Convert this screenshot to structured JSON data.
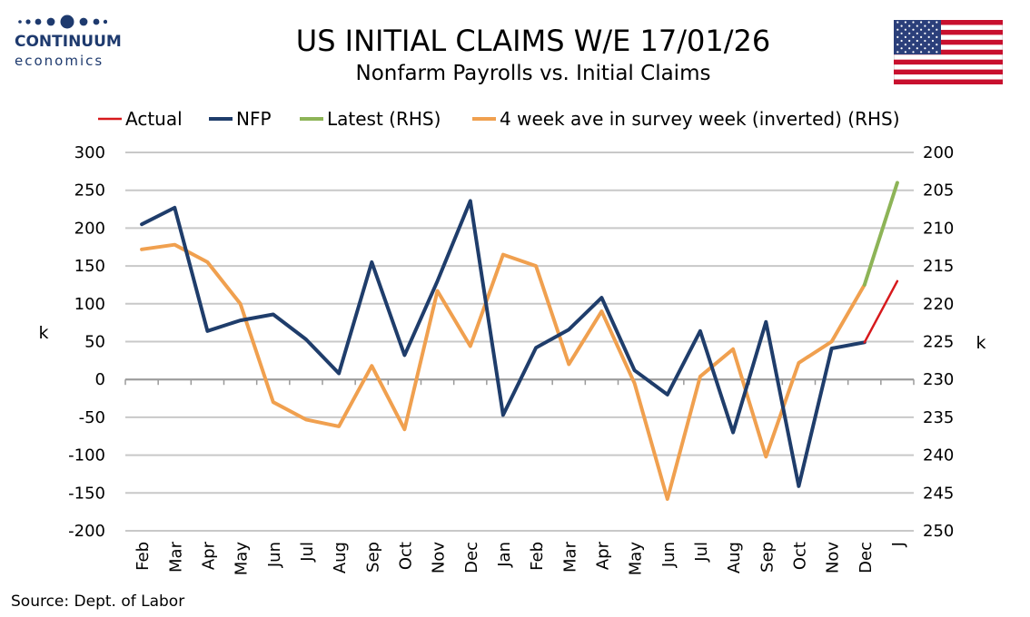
{
  "brand": {
    "name": "CONTINUUM",
    "sub": "economics"
  },
  "header": {
    "title": "US INITIAL CLAIMS W/E 17/01/26",
    "subtitle": "Nonfarm Payrolls vs. Initial Claims"
  },
  "flag": {
    "country": "United States",
    "icon": "us-flag-icon"
  },
  "source": "Source: Dept. of Labor",
  "colors": {
    "actual": "#d7191c",
    "nfp": "#1f3d6b",
    "latest": "#8db457",
    "claims": "#f0a04f",
    "grid": "#c8c8c8"
  },
  "chart_data": {
    "type": "line",
    "title": "Nonfarm Payrolls vs. Initial Claims",
    "categories": [
      "Feb",
      "Mar",
      "Apr",
      "May",
      "Jun",
      "Jul",
      "Aug",
      "Sep",
      "Oct",
      "Nov",
      "Dec",
      "Jan",
      "Feb",
      "Mar",
      "Apr",
      "May",
      "Jun",
      "Jul",
      "Aug",
      "Sep",
      "Oct",
      "Nov",
      "Dec",
      "J"
    ],
    "ylabel_left": "k",
    "ylabel_right": "k",
    "ylim_left": [
      -200,
      300
    ],
    "ylim_right": [
      250,
      200
    ],
    "yticks_left": [
      300,
      250,
      200,
      150,
      100,
      50,
      0,
      -50,
      -100,
      -150,
      -200
    ],
    "yticks_right": [
      200,
      205,
      210,
      215,
      220,
      225,
      230,
      235,
      240,
      245,
      250
    ],
    "grid": true,
    "legend_position": "top",
    "series": [
      {
        "name": "Actual",
        "key": "actual",
        "axis": "left",
        "points": [
          [
            22,
            49
          ],
          [
            23,
            130
          ]
        ]
      },
      {
        "name": "NFP",
        "key": "nfp",
        "axis": "left",
        "values": [
          205,
          227,
          64,
          78,
          86,
          53,
          8,
          155,
          32,
          130,
          236,
          -47,
          42,
          66,
          108,
          12,
          -20,
          64,
          -70,
          76,
          -141,
          41,
          49,
          null
        ]
      },
      {
        "name": "Latest (RHS)",
        "key": "latest",
        "axis": "right",
        "points": [
          [
            22,
            217.5
          ],
          [
            23,
            204.0
          ]
        ]
      },
      {
        "name": "4 week ave in survey week (inverted) (RHS)",
        "key": "claims",
        "axis": "right",
        "values": [
          212.8,
          212.2,
          214.5,
          220.0,
          233.0,
          235.3,
          236.2,
          228.2,
          236.6,
          218.3,
          225.6,
          213.5,
          215.0,
          228.0,
          221.0,
          230.5,
          245.8,
          229.6,
          226.0,
          240.2,
          227.8,
          225.0,
          217.5,
          null
        ]
      }
    ]
  }
}
